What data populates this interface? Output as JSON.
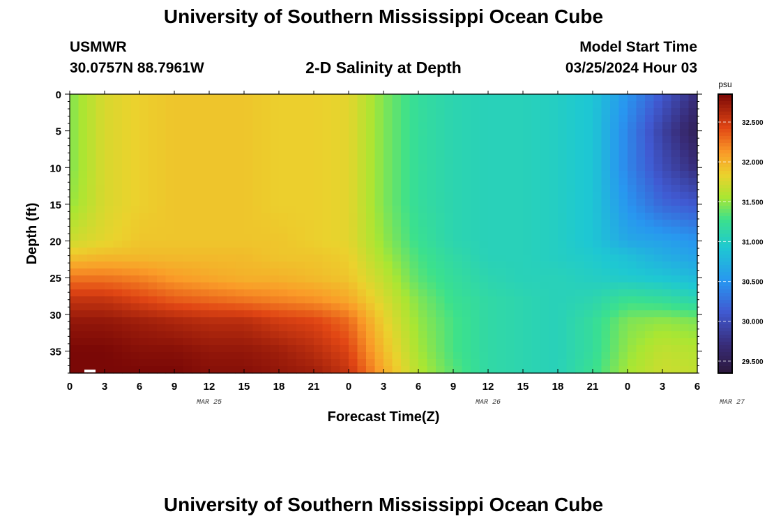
{
  "header": {
    "title": "University of Southern Mississippi Ocean Cube",
    "station": "USMWR",
    "coordinates": "30.0757N  88.7961W",
    "plot_title": "2-D Salinity at Depth",
    "model_start_label": "Model Start Time",
    "model_start_value": "03/25/2024 Hour 03"
  },
  "footer": {
    "title": "University of Southern Mississippi Ocean Cube"
  },
  "chart_data": {
    "type": "heatmap",
    "title": "2-D Salinity at Depth",
    "xlabel": "Forecast Time(Z)",
    "ylabel": "Depth (ft)",
    "x_tick_labels": [
      "0",
      "3",
      "6",
      "9",
      "12",
      "15",
      "18",
      "21",
      "0",
      "3",
      "6",
      "9",
      "12",
      "15",
      "18",
      "21",
      "0",
      "3",
      "6"
    ],
    "x_date_labels": [
      {
        "label": "MAR 25",
        "hour": 12
      },
      {
        "label": "MAR 26",
        "hour": 36
      },
      {
        "label": "MAR 27",
        "hour": 57
      }
    ],
    "x_range_hours": [
      0,
      54
    ],
    "y_ticks": [
      0,
      5,
      10,
      15,
      20,
      25,
      30,
      35
    ],
    "y_range": [
      0,
      38
    ],
    "y_inverted": true,
    "colorbar": {
      "unit": "psu",
      "ticks": [
        "32.500",
        "32.000",
        "31.500",
        "31.000",
        "30.500",
        "30.000",
        "29.500"
      ],
      "range": [
        29.35,
        32.85
      ]
    },
    "time_hours": [
      0,
      3,
      6,
      9,
      12,
      15,
      18,
      21,
      24,
      27,
      30,
      33,
      36,
      39,
      42,
      45,
      48,
      51,
      54
    ],
    "depths_ft": [
      0,
      5,
      10,
      15,
      20,
      22,
      25,
      28,
      31,
      35,
      38
    ],
    "salinity_psu": [
      [
        31.45,
        31.75,
        31.85,
        31.9,
        31.9,
        31.9,
        31.85,
        31.85,
        31.8,
        31.45,
        31.2,
        31.1,
        31.05,
        31.05,
        31.0,
        30.9,
        30.5,
        30.1,
        29.7
      ],
      [
        31.45,
        31.75,
        31.85,
        31.9,
        31.9,
        31.9,
        31.85,
        31.85,
        31.8,
        31.45,
        31.2,
        31.1,
        31.05,
        31.05,
        31.0,
        30.9,
        30.4,
        29.9,
        29.5
      ],
      [
        31.45,
        31.75,
        31.85,
        31.9,
        31.9,
        31.9,
        31.85,
        31.85,
        31.8,
        31.45,
        31.2,
        31.1,
        31.05,
        31.05,
        31.0,
        30.9,
        30.4,
        30.0,
        29.7
      ],
      [
        31.5,
        31.75,
        31.85,
        31.9,
        31.9,
        31.9,
        31.85,
        31.85,
        31.8,
        31.45,
        31.2,
        31.1,
        31.05,
        31.05,
        31.0,
        30.9,
        30.5,
        30.2,
        30.1
      ],
      [
        31.7,
        31.8,
        31.9,
        31.9,
        31.9,
        31.9,
        31.9,
        31.85,
        31.8,
        31.5,
        31.25,
        31.1,
        31.05,
        31.05,
        31.0,
        30.9,
        30.65,
        30.6,
        30.5
      ],
      [
        31.9,
        31.95,
        31.95,
        31.95,
        31.95,
        31.95,
        31.9,
        31.9,
        31.85,
        31.55,
        31.3,
        31.15,
        31.05,
        31.05,
        31.0,
        30.95,
        30.85,
        30.7,
        30.6
      ],
      [
        32.25,
        32.25,
        32.2,
        32.1,
        32.05,
        32.0,
        32.0,
        31.95,
        31.9,
        31.65,
        31.35,
        31.2,
        31.1,
        31.05,
        31.05,
        31.0,
        30.95,
        30.9,
        30.8
      ],
      [
        32.55,
        32.55,
        32.45,
        32.35,
        32.3,
        32.25,
        32.2,
        32.15,
        32.05,
        31.75,
        31.45,
        31.25,
        31.15,
        31.1,
        31.05,
        31.1,
        31.25,
        31.2,
        31.1
      ],
      [
        32.75,
        32.75,
        32.7,
        32.65,
        32.6,
        32.6,
        32.5,
        32.45,
        32.3,
        31.85,
        31.5,
        31.3,
        31.15,
        31.1,
        31.05,
        31.2,
        31.45,
        31.5,
        31.45
      ],
      [
        32.85,
        32.85,
        32.8,
        32.8,
        32.75,
        32.75,
        32.7,
        32.6,
        32.45,
        31.95,
        31.55,
        31.3,
        31.15,
        31.1,
        31.05,
        31.2,
        31.5,
        31.65,
        31.6
      ],
      [
        32.85,
        32.85,
        32.85,
        32.85,
        32.8,
        32.8,
        32.75,
        32.7,
        32.55,
        32.05,
        31.6,
        31.35,
        31.15,
        31.1,
        31.05,
        31.25,
        31.55,
        31.7,
        31.65
      ]
    ],
    "grid": false
  }
}
